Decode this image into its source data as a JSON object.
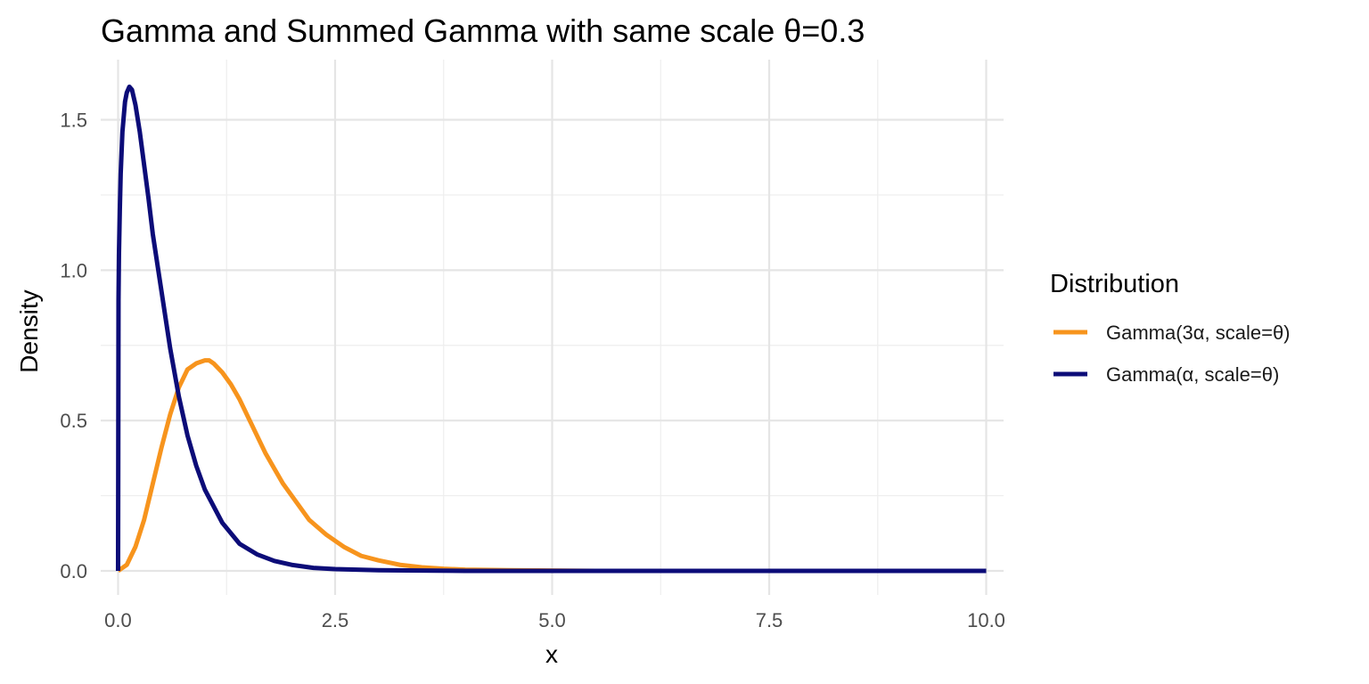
{
  "chart_data": {
    "type": "line",
    "title": "Gamma and Summed Gamma with same scale θ=0.3",
    "xlabel": "x",
    "ylabel": "Density",
    "xlim": [
      -0.2,
      10.2
    ],
    "ylim": [
      -0.08,
      1.7
    ],
    "x_ticks": [
      0,
      2.5,
      5,
      7.5,
      10
    ],
    "x_tick_labels": [
      "0.0",
      "2.5",
      "5.0",
      "7.5",
      "10.0"
    ],
    "y_ticks": [
      0,
      0.5,
      1,
      1.5
    ],
    "y_tick_labels": [
      "0.0",
      "0.5",
      "1.0",
      "1.5"
    ],
    "grid": true,
    "legend": {
      "title": "Distribution",
      "position": "right"
    },
    "series": [
      {
        "name": "Gamma(3α, scale=θ)",
        "color": "#F7941D",
        "x": [
          0,
          0.1,
          0.2,
          0.3,
          0.4,
          0.5,
          0.6,
          0.7,
          0.8,
          0.9,
          1.0,
          1.05,
          1.1,
          1.2,
          1.3,
          1.4,
          1.5,
          1.6,
          1.7,
          1.8,
          1.9,
          2.0,
          2.2,
          2.4,
          2.6,
          2.8,
          3.0,
          3.25,
          3.5,
          3.75,
          4.0,
          4.5,
          5.0,
          5.5,
          6.0,
          7.0,
          8.0,
          9.0,
          10.0
        ],
        "y": [
          0,
          0.02,
          0.08,
          0.17,
          0.29,
          0.41,
          0.52,
          0.61,
          0.67,
          0.69,
          0.7,
          0.7,
          0.69,
          0.66,
          0.62,
          0.57,
          0.51,
          0.45,
          0.39,
          0.34,
          0.29,
          0.25,
          0.17,
          0.12,
          0.08,
          0.05,
          0.035,
          0.02,
          0.012,
          0.007,
          0.004,
          0.002,
          0.001,
          0,
          0,
          0,
          0,
          0,
          0
        ]
      },
      {
        "name": "Gamma(α, scale=θ)",
        "color": "#0C0C78",
        "x": [
          0,
          0.005,
          0.01,
          0.02,
          0.03,
          0.05,
          0.08,
          0.1,
          0.13,
          0.16,
          0.2,
          0.25,
          0.3,
          0.35,
          0.4,
          0.5,
          0.6,
          0.7,
          0.8,
          0.9,
          1.0,
          1.2,
          1.4,
          1.6,
          1.8,
          2.0,
          2.25,
          2.5,
          3.0,
          3.5,
          4.0,
          5.0,
          6.0,
          7.0,
          8.0,
          9.0,
          10.0
        ],
        "y": [
          0,
          0.9,
          1.05,
          1.2,
          1.32,
          1.46,
          1.56,
          1.59,
          1.61,
          1.6,
          1.55,
          1.46,
          1.35,
          1.24,
          1.12,
          0.93,
          0.74,
          0.58,
          0.45,
          0.35,
          0.27,
          0.16,
          0.09,
          0.055,
          0.033,
          0.02,
          0.01,
          0.006,
          0.002,
          0.001,
          0,
          0,
          0,
          0,
          0,
          0,
          0
        ]
      }
    ]
  }
}
